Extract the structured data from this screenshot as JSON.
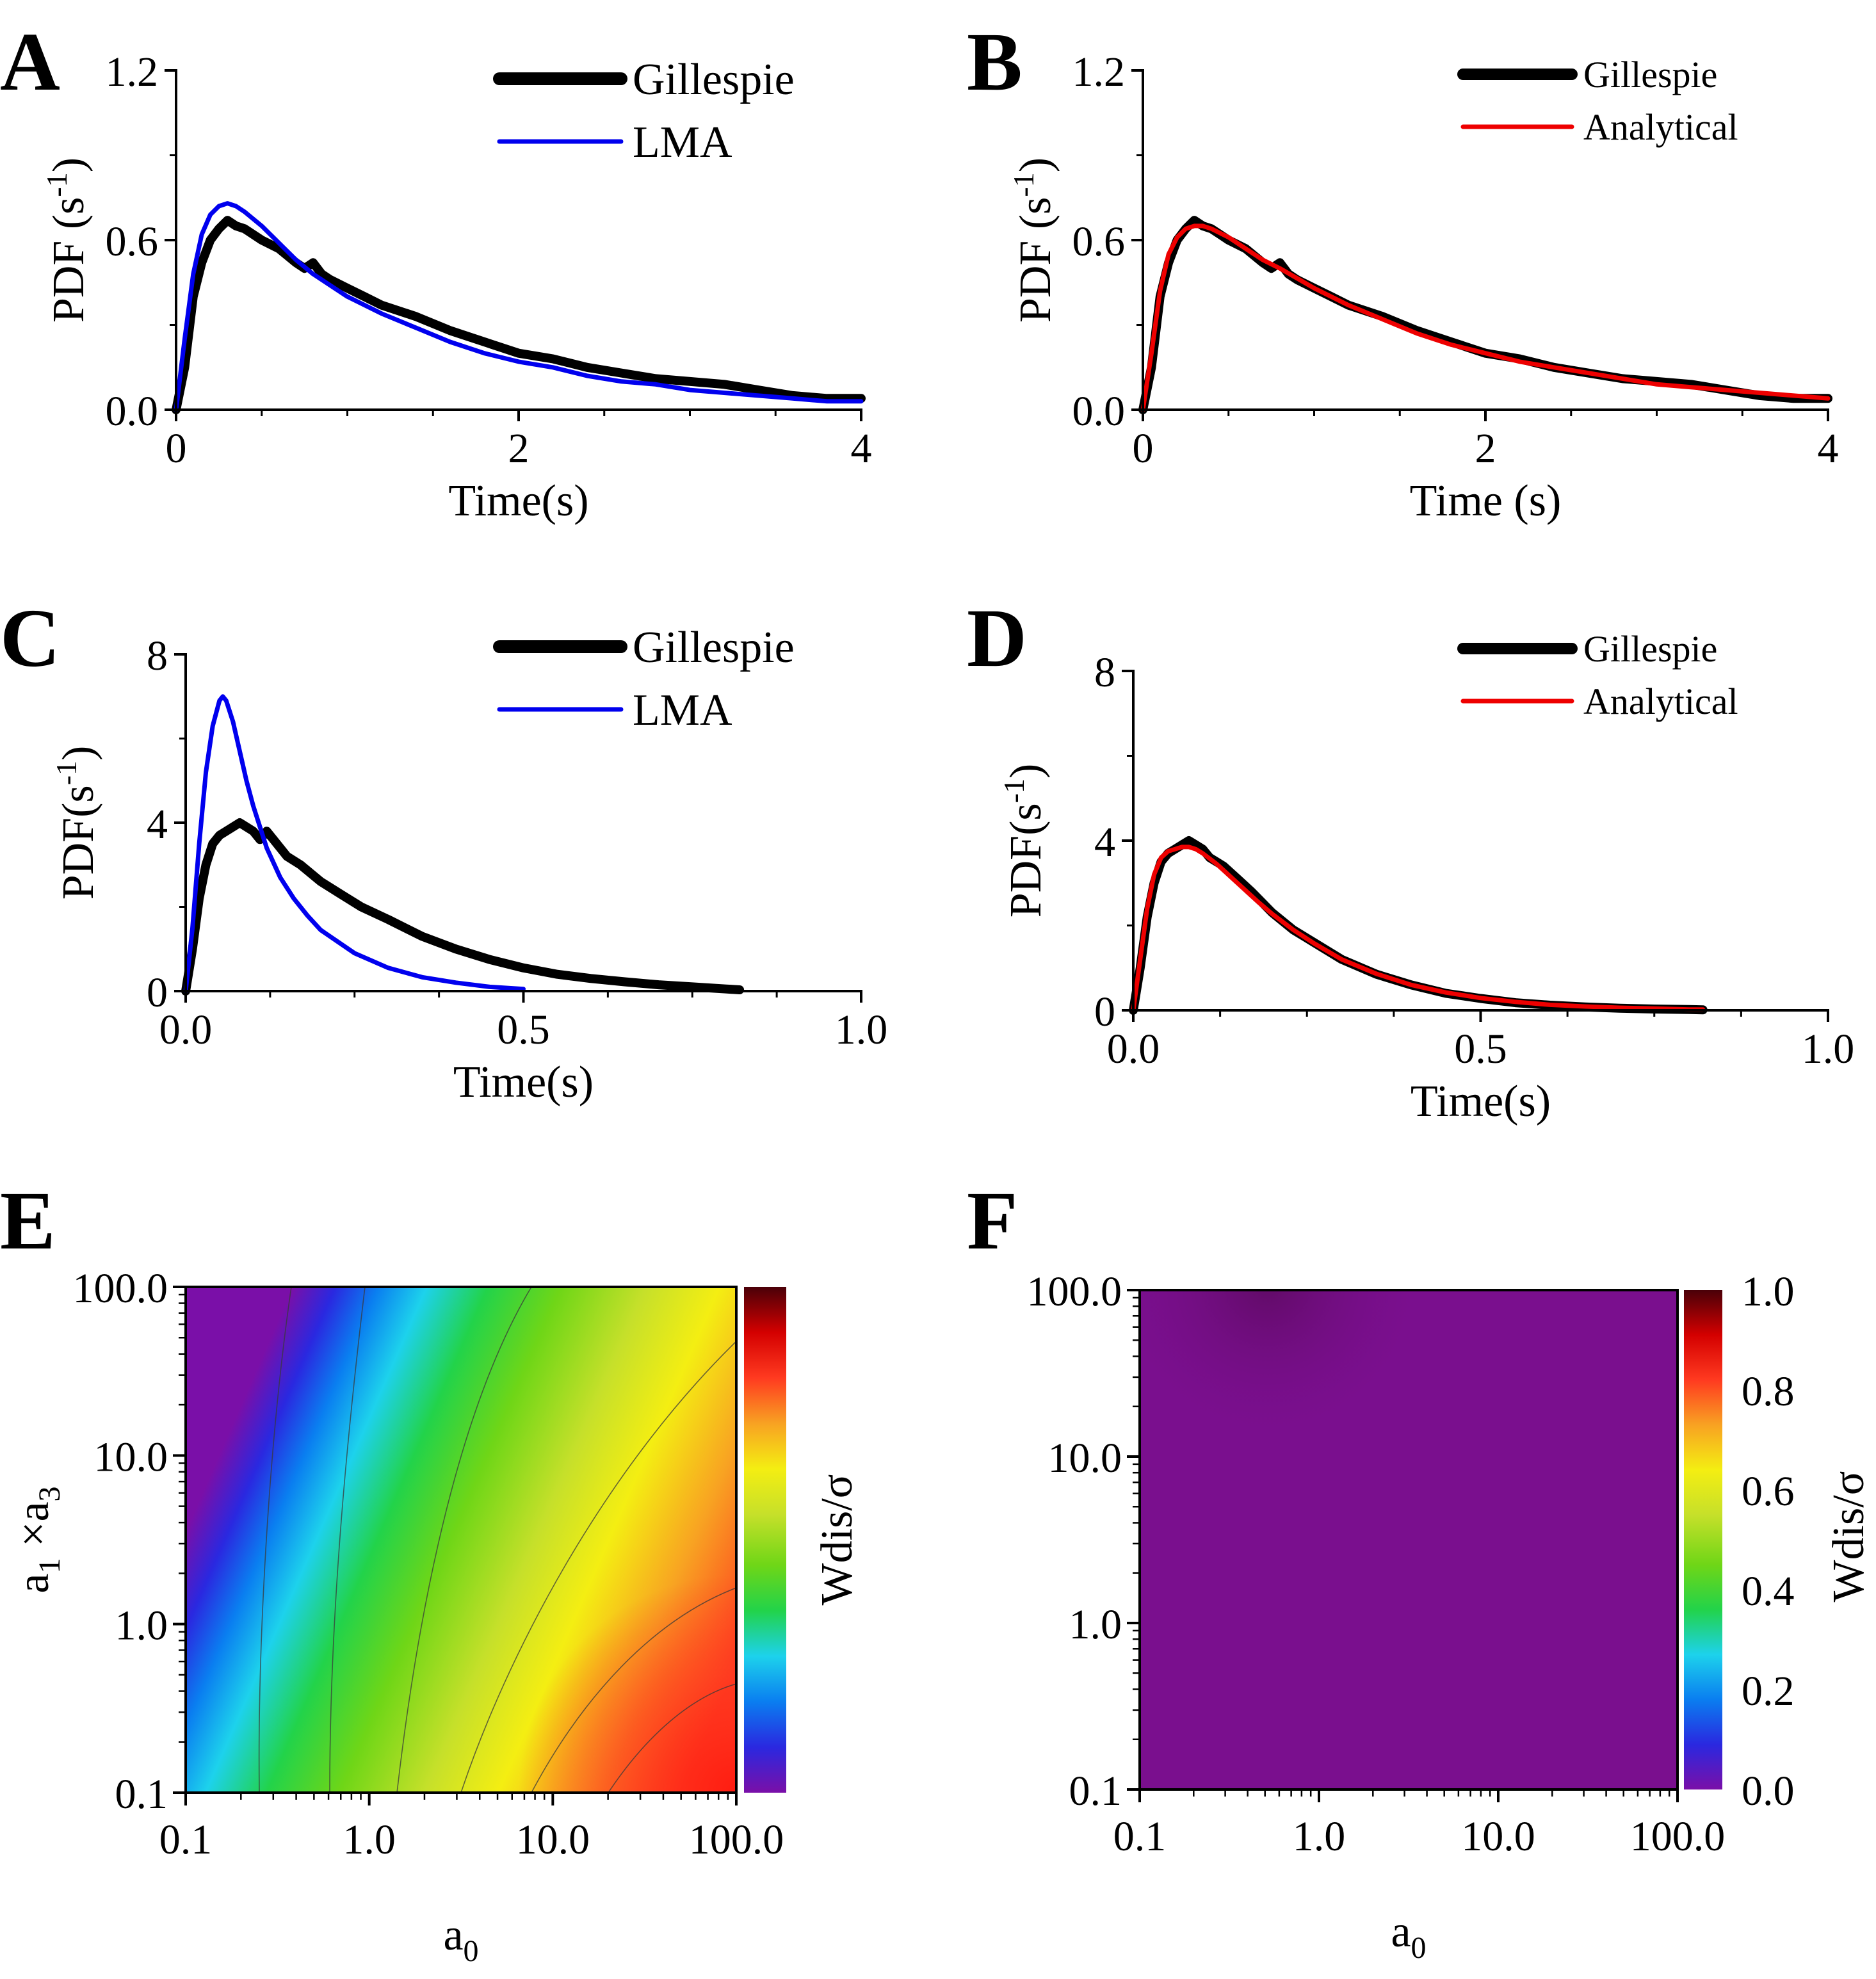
{
  "chart_data": [
    {
      "panel": "A",
      "type": "line",
      "xlabel": "Time(s)",
      "ylabel": "PDF (s-1)",
      "ylabel_parts": {
        "main": "PDF (s",
        "sup": "-1",
        "close": ")"
      },
      "xlim": [
        0,
        4
      ],
      "ylim": [
        0,
        1.2
      ],
      "xticks": [
        "0",
        "2",
        "4"
      ],
      "xtick_values": [
        0,
        2,
        4
      ],
      "yticks": [
        "0.0",
        "0.6",
        "1.2"
      ],
      "ytick_values": [
        0,
        0.6,
        1.2
      ],
      "legend_position": "top-right",
      "series": [
        {
          "name": "Gillespie",
          "color": "#000000",
          "style": "thick",
          "x": [
            0,
            0.05,
            0.1,
            0.15,
            0.2,
            0.25,
            0.3,
            0.35,
            0.4,
            0.5,
            0.6,
            0.7,
            0.75,
            0.8,
            0.85,
            0.9,
            1.0,
            1.1,
            1.2,
            1.4,
            1.6,
            1.8,
            2.0,
            2.2,
            2.4,
            2.6,
            2.8,
            3.0,
            3.2,
            3.4,
            3.6,
            3.8,
            4.0
          ],
          "y": [
            0,
            0.15,
            0.4,
            0.52,
            0.6,
            0.64,
            0.67,
            0.65,
            0.64,
            0.6,
            0.57,
            0.52,
            0.5,
            0.52,
            0.48,
            0.46,
            0.43,
            0.4,
            0.37,
            0.33,
            0.28,
            0.24,
            0.2,
            0.18,
            0.15,
            0.13,
            0.11,
            0.1,
            0.09,
            0.07,
            0.05,
            0.04,
            0.04
          ]
        },
        {
          "name": "LMA",
          "color": "#0000ee",
          "style": "thin",
          "x": [
            0,
            0.05,
            0.1,
            0.15,
            0.2,
            0.25,
            0.3,
            0.35,
            0.4,
            0.5,
            0.6,
            0.7,
            0.8,
            1.0,
            1.2,
            1.4,
            1.6,
            1.8,
            2.0,
            2.2,
            2.4,
            2.6,
            2.8,
            3.0,
            3.2,
            3.4,
            3.6,
            3.8,
            4.0
          ],
          "y": [
            0,
            0.25,
            0.48,
            0.62,
            0.69,
            0.72,
            0.73,
            0.72,
            0.7,
            0.65,
            0.59,
            0.53,
            0.48,
            0.4,
            0.34,
            0.29,
            0.24,
            0.2,
            0.17,
            0.15,
            0.12,
            0.1,
            0.09,
            0.07,
            0.06,
            0.05,
            0.04,
            0.03,
            0.03
          ]
        }
      ]
    },
    {
      "panel": "B",
      "type": "line",
      "xlabel": "Time (s)",
      "ylabel": "PDF (s-1)",
      "ylabel_parts": {
        "main": "PDF (s",
        "sup": "-1",
        "close": ")"
      },
      "xlim": [
        0,
        4
      ],
      "ylim": [
        0,
        1.2
      ],
      "xticks": [
        "0",
        "2",
        "4"
      ],
      "xtick_values": [
        0,
        2,
        4
      ],
      "yticks": [
        "0.0",
        "0.6",
        "1.2"
      ],
      "ytick_values": [
        0,
        0.6,
        1.2
      ],
      "legend_position": "top-right",
      "series": [
        {
          "name": "Gillespie",
          "color": "#000000",
          "style": "thick",
          "x": [
            0,
            0.05,
            0.1,
            0.15,
            0.2,
            0.25,
            0.3,
            0.35,
            0.4,
            0.5,
            0.6,
            0.7,
            0.75,
            0.8,
            0.85,
            0.9,
            1.0,
            1.1,
            1.2,
            1.4,
            1.6,
            1.8,
            2.0,
            2.2,
            2.4,
            2.6,
            2.8,
            3.0,
            3.2,
            3.4,
            3.6,
            3.8,
            4.0
          ],
          "y": [
            0,
            0.15,
            0.4,
            0.52,
            0.6,
            0.64,
            0.67,
            0.65,
            0.64,
            0.6,
            0.57,
            0.52,
            0.5,
            0.52,
            0.48,
            0.46,
            0.43,
            0.4,
            0.37,
            0.33,
            0.28,
            0.24,
            0.2,
            0.18,
            0.15,
            0.13,
            0.11,
            0.1,
            0.09,
            0.07,
            0.05,
            0.04,
            0.04
          ]
        },
        {
          "name": "Analytical",
          "color": "#ee0000",
          "style": "thin",
          "x": [
            0,
            0.05,
            0.1,
            0.15,
            0.2,
            0.25,
            0.3,
            0.35,
            0.4,
            0.5,
            0.6,
            0.7,
            0.8,
            1.0,
            1.2,
            1.4,
            1.6,
            1.8,
            2.0,
            2.2,
            2.4,
            2.6,
            2.8,
            3.0,
            3.2,
            3.4,
            3.6,
            3.8,
            4.0
          ],
          "y": [
            0,
            0.2,
            0.42,
            0.55,
            0.61,
            0.64,
            0.65,
            0.65,
            0.64,
            0.61,
            0.57,
            0.53,
            0.5,
            0.43,
            0.37,
            0.32,
            0.27,
            0.23,
            0.2,
            0.17,
            0.15,
            0.13,
            0.11,
            0.09,
            0.08,
            0.07,
            0.06,
            0.05,
            0.04
          ]
        }
      ]
    },
    {
      "panel": "C",
      "type": "line",
      "xlabel": "Time(s)",
      "ylabel": "PDF(s-1)",
      "ylabel_parts": {
        "main": "PDF(s",
        "sup": "-1",
        "close": ")"
      },
      "xlim": [
        0,
        1
      ],
      "ylim": [
        0,
        8
      ],
      "xticks": [
        "0.0",
        "0.5",
        "1.0"
      ],
      "xtick_values": [
        0,
        0.5,
        1
      ],
      "yticks": [
        "0",
        "4",
        "8"
      ],
      "ytick_values": [
        0,
        4,
        8
      ],
      "legend_position": "top-right",
      "series": [
        {
          "name": "Gillespie",
          "color": "#000000",
          "style": "thick",
          "x": [
            0,
            0.01,
            0.02,
            0.03,
            0.04,
            0.05,
            0.06,
            0.07,
            0.08,
            0.09,
            0.1,
            0.11,
            0.12,
            0.13,
            0.15,
            0.17,
            0.2,
            0.23,
            0.26,
            0.3,
            0.35,
            0.4,
            0.45,
            0.5,
            0.55,
            0.6,
            0.65,
            0.7,
            0.75,
            0.8,
            0.82
          ],
          "y": [
            0,
            1.0,
            2.2,
            3.0,
            3.5,
            3.7,
            3.8,
            3.9,
            4.0,
            3.9,
            3.8,
            3.6,
            3.8,
            3.6,
            3.2,
            3.0,
            2.6,
            2.3,
            2.0,
            1.7,
            1.3,
            1.0,
            0.75,
            0.55,
            0.4,
            0.3,
            0.22,
            0.15,
            0.1,
            0.05,
            0.03
          ]
        },
        {
          "name": "LMA",
          "color": "#0000ee",
          "style": "thin",
          "x": [
            0,
            0.01,
            0.02,
            0.03,
            0.04,
            0.05,
            0.055,
            0.06,
            0.07,
            0.08,
            0.09,
            0.1,
            0.12,
            0.14,
            0.16,
            0.18,
            0.2,
            0.25,
            0.3,
            0.35,
            0.4,
            0.45,
            0.5
          ],
          "y": [
            0,
            1.5,
            3.5,
            5.2,
            6.3,
            6.9,
            7.0,
            6.9,
            6.4,
            5.7,
            5.0,
            4.4,
            3.4,
            2.7,
            2.2,
            1.8,
            1.45,
            0.9,
            0.55,
            0.33,
            0.2,
            0.1,
            0.05
          ]
        }
      ]
    },
    {
      "panel": "D",
      "type": "line",
      "xlabel": "Time(s)",
      "ylabel": "PDF(s-1)",
      "ylabel_parts": {
        "main": "PDF(s",
        "sup": "-1",
        "close": ")"
      },
      "xlim": [
        0,
        1
      ],
      "ylim": [
        0,
        8
      ],
      "xticks": [
        "0.0",
        "0.5",
        "1.0"
      ],
      "xtick_values": [
        0,
        0.5,
        1
      ],
      "yticks": [
        "0",
        "4",
        "8"
      ],
      "ytick_values": [
        0,
        4,
        8
      ],
      "legend_position": "top-right",
      "series": [
        {
          "name": "Gillespie",
          "color": "#000000",
          "style": "thick",
          "x": [
            0,
            0.01,
            0.02,
            0.03,
            0.04,
            0.05,
            0.06,
            0.07,
            0.08,
            0.09,
            0.1,
            0.11,
            0.12,
            0.13,
            0.15,
            0.17,
            0.2,
            0.23,
            0.26,
            0.3,
            0.35,
            0.4,
            0.45,
            0.5,
            0.55,
            0.6,
            0.65,
            0.7,
            0.75,
            0.8,
            0.82
          ],
          "y": [
            0,
            1.0,
            2.2,
            3.0,
            3.5,
            3.7,
            3.8,
            3.9,
            4.0,
            3.9,
            3.8,
            3.6,
            3.5,
            3.4,
            3.1,
            2.8,
            2.3,
            1.9,
            1.6,
            1.2,
            0.85,
            0.6,
            0.4,
            0.28,
            0.18,
            0.12,
            0.08,
            0.05,
            0.03,
            0.02,
            0.01
          ]
        },
        {
          "name": "Analytical",
          "color": "#ee0000",
          "style": "thin",
          "x": [
            0,
            0.01,
            0.02,
            0.03,
            0.04,
            0.05,
            0.06,
            0.07,
            0.08,
            0.09,
            0.1,
            0.12,
            0.14,
            0.16,
            0.18,
            0.2,
            0.23,
            0.26,
            0.3,
            0.35,
            0.4,
            0.45,
            0.5,
            0.55,
            0.6,
            0.65,
            0.7,
            0.75,
            0.8,
            0.82
          ],
          "y": [
            0,
            1.2,
            2.4,
            3.2,
            3.6,
            3.75,
            3.8,
            3.85,
            3.85,
            3.8,
            3.7,
            3.45,
            3.15,
            2.85,
            2.55,
            2.27,
            1.9,
            1.58,
            1.2,
            0.86,
            0.6,
            0.42,
            0.29,
            0.2,
            0.13,
            0.09,
            0.06,
            0.04,
            0.02,
            0.02
          ]
        }
      ]
    },
    {
      "panel": "E",
      "type": "heatmap",
      "xlabel": "a0",
      "xlabel_parts": {
        "main": "a",
        "sub": "0"
      },
      "ylabel": "a1 ×a3",
      "ylabel_parts": {
        "m1": "a",
        "s1": "1",
        "mid": " ×a",
        "s2": "3"
      },
      "xscale": "log",
      "yscale": "log",
      "xlim": [
        0.1,
        100
      ],
      "ylim": [
        0.1,
        100
      ],
      "xticks": [
        "0.1",
        "1.0",
        "10.0",
        "100.0"
      ],
      "yticks": [
        "0.1",
        "1.0",
        "10.0",
        "100.0"
      ],
      "colorbar": {
        "label": "Wdis/σ",
        "range": [
          0,
          1
        ],
        "tick_labels": []
      },
      "colormap": [
        "#7a0fa8",
        "#2a28e0",
        "#0a7ef0",
        "#1dd2ec",
        "#22d34a",
        "#6fd617",
        "#c6e02a",
        "#f4ee12",
        "#f8a222",
        "#ff3a20",
        "#d40000",
        "#4a0008"
      ],
      "note": "value increases with a0 and decreases with a1×a3; near 0.1 at low a0, near 0.85 at high a0 and low a1×a3"
    },
    {
      "panel": "F",
      "type": "heatmap",
      "xlabel": "a0",
      "xlabel_parts": {
        "main": "a",
        "sub": "0"
      },
      "ylabel": "",
      "xscale": "log",
      "yscale": "log",
      "xlim": [
        0.1,
        100
      ],
      "ylim": [
        0.1,
        100
      ],
      "xticks": [
        "0.1",
        "1.0",
        "10.0",
        "100.0"
      ],
      "yticks": [
        "0.1",
        "1.0",
        "10.0",
        "100.0"
      ],
      "colorbar": {
        "label": "Wdis/σ",
        "range": [
          0,
          1
        ],
        "tick_labels": [
          "0.0",
          "0.2",
          "0.4",
          "0.6",
          "0.8",
          "1.0"
        ],
        "tick_values": [
          0,
          0.2,
          0.4,
          0.6,
          0.8,
          1.0
        ]
      },
      "colormap": [
        "#7a0fa8",
        "#2a28e0",
        "#0a7ef0",
        "#1dd2ec",
        "#22d34a",
        "#6fd617",
        "#c6e02a",
        "#f4ee12",
        "#f8a222",
        "#ff3a20",
        "#d40000",
        "#4a0008"
      ],
      "note": "uniformly near 0 (purple) across the whole domain"
    }
  ]
}
